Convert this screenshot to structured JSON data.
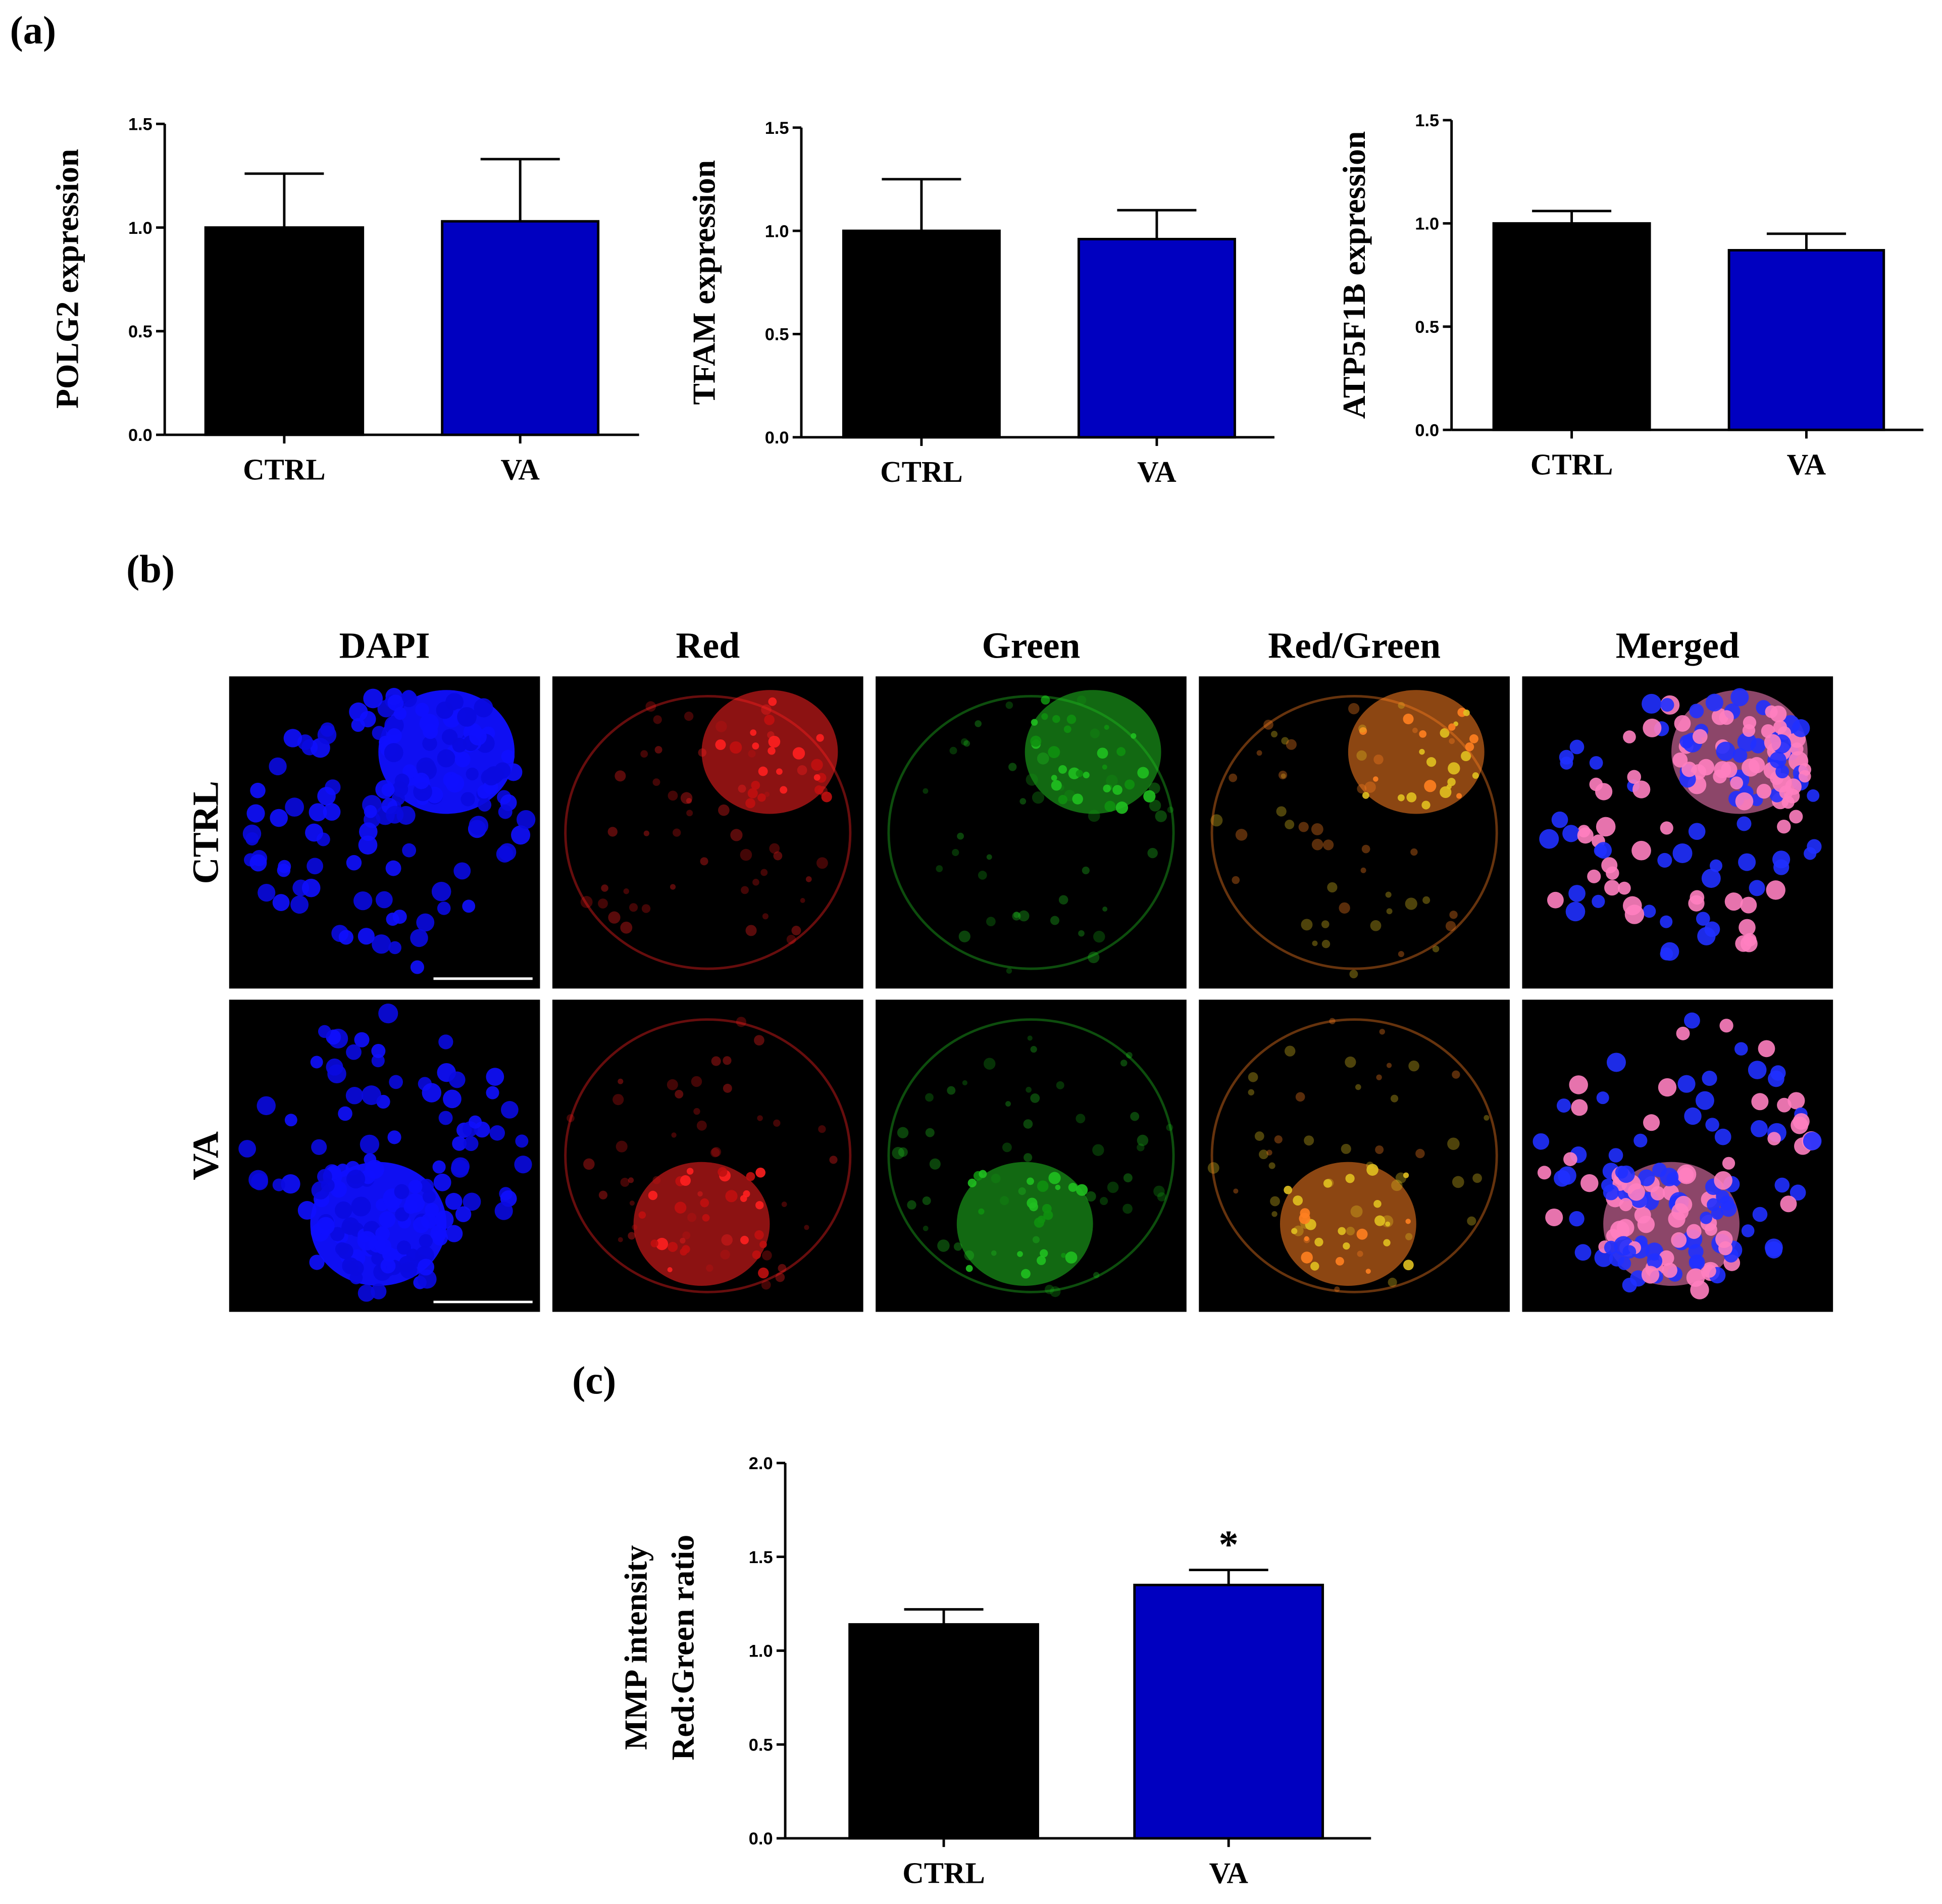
{
  "panel_labels": [
    "(a)",
    "(b)",
    "(c)"
  ],
  "image_grid": {
    "columns": [
      "DAPI",
      "Red",
      "Green",
      "Red/Green",
      "Merged"
    ],
    "rows": [
      "CTRL",
      "VA"
    ]
  },
  "chart_data": [
    {
      "type": "bar",
      "ylabel": "POLG2 expression",
      "categories": [
        "CTRL",
        "VA"
      ],
      "values": [
        1.0,
        1.03
      ],
      "errors": [
        0.26,
        0.3
      ],
      "colors": [
        "#000000",
        "#0000c0"
      ],
      "ylim": [
        0,
        1.5
      ],
      "yticks": [
        {
          "value": 0,
          "label": "0.0"
        },
        {
          "value": 0.5,
          "label": "0.5"
        },
        {
          "value": 1,
          "label": "1.0"
        },
        {
          "value": 1.5,
          "label": "1.5"
        }
      ]
    },
    {
      "type": "bar",
      "ylabel": "TFAM expression",
      "categories": [
        "CTRL",
        "VA"
      ],
      "values": [
        1.0,
        0.96
      ],
      "errors": [
        0.25,
        0.14
      ],
      "colors": [
        "#000000",
        "#0000c0"
      ],
      "ylim": [
        0,
        1.5
      ],
      "yticks": [
        {
          "value": 0,
          "label": "0.0"
        },
        {
          "value": 0.5,
          "label": "0.5"
        },
        {
          "value": 1,
          "label": "1.0"
        },
        {
          "value": 1.5,
          "label": "1.5"
        }
      ]
    },
    {
      "type": "bar",
      "ylabel": "ATP5F1B expression",
      "categories": [
        "CTRL",
        "VA"
      ],
      "values": [
        1.0,
        0.87
      ],
      "errors": [
        0.06,
        0.08
      ],
      "colors": [
        "#000000",
        "#0000c0"
      ],
      "ylim": [
        0,
        1.5
      ],
      "yticks": [
        {
          "value": 0,
          "label": "0.0"
        },
        {
          "value": 0.5,
          "label": "0.5"
        },
        {
          "value": 1,
          "label": "1.0"
        },
        {
          "value": 1.5,
          "label": "1.5"
        }
      ]
    },
    {
      "type": "bar",
      "ylabel": [
        "MMP intensity",
        "Red:Green ratio"
      ],
      "categories": [
        "CTRL",
        "VA"
      ],
      "values": [
        1.14,
        1.35
      ],
      "errors": [
        0.08,
        0.08
      ],
      "colors": [
        "#000000",
        "#0000c0"
      ],
      "ylim": [
        0,
        2
      ],
      "annotation": "*",
      "yticks": [
        {
          "value": 0,
          "label": "0.0"
        },
        {
          "value": 0.5,
          "label": "0.5"
        },
        {
          "value": 1,
          "label": "1.0"
        },
        {
          "value": 1.5,
          "label": "1.5"
        },
        {
          "value": 2,
          "label": "2.0"
        }
      ]
    }
  ]
}
